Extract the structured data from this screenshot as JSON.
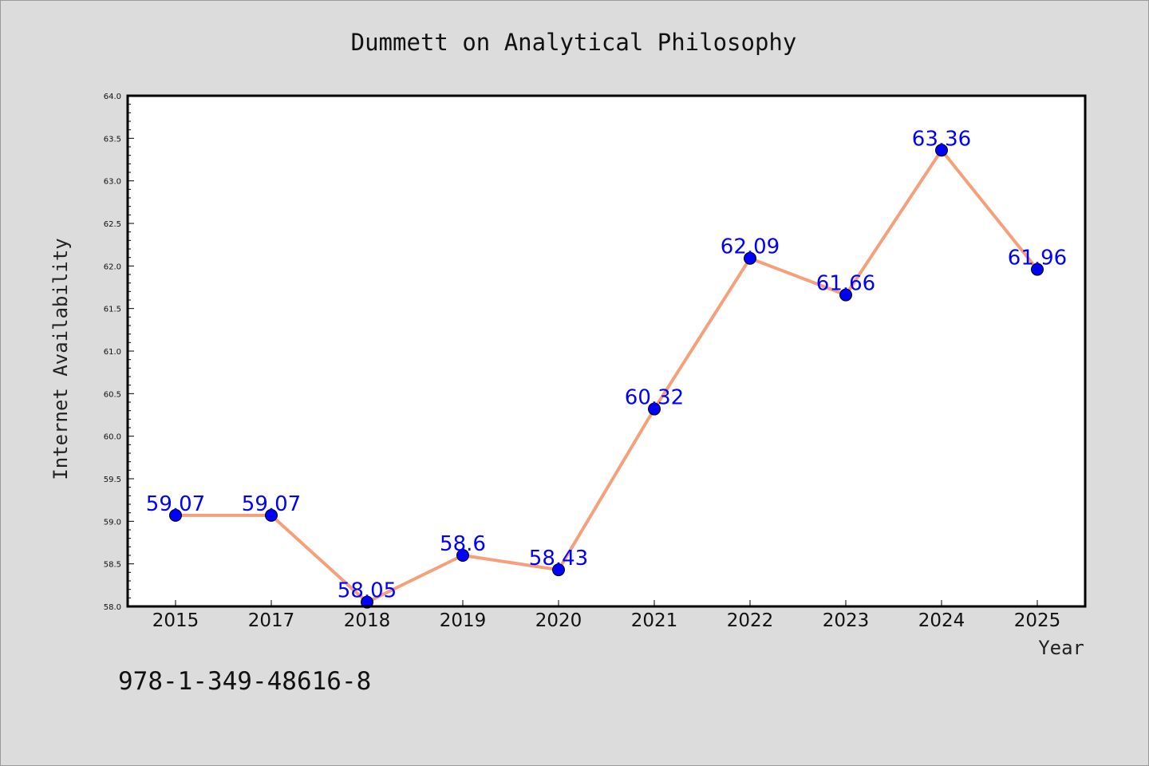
{
  "chart_data": {
    "type": "line",
    "title": "Dummett on Analytical Philosophy",
    "xlabel": "Year",
    "ylabel": "Internet Availability",
    "categories": [
      "2015",
      "2017",
      "2018",
      "2019",
      "2020",
      "2021",
      "2022",
      "2023",
      "2024",
      "2025"
    ],
    "series": [
      {
        "values": [
          59.07,
          59.07,
          58.05,
          58.6,
          58.43,
          60.32,
          62.09,
          61.66,
          63.36,
          61.96
        ],
        "labels": [
          "59.07",
          "59.07",
          "58.05",
          "58.6",
          "58.43",
          "60.32",
          "62.09",
          "61.66",
          "63.36",
          "61.96"
        ],
        "line_color": "#f4a07a",
        "marker_color": "#0000ff"
      }
    ],
    "ylim": [
      58.0,
      64.0
    ],
    "yticks": [
      "58.0",
      "58.5",
      "59.0",
      "59.5",
      "60.0",
      "60.5",
      "61.0",
      "61.5",
      "62.0",
      "62.5",
      "63.0",
      "63.5",
      "64.0"
    ],
    "grid": false,
    "legend": "none"
  },
  "footer": {
    "isbn": "978-1-349-48616-8"
  },
  "colors": {
    "background": "#dcdcdc",
    "plot_background": "#ffffff",
    "data_label": "#0000ff"
  }
}
